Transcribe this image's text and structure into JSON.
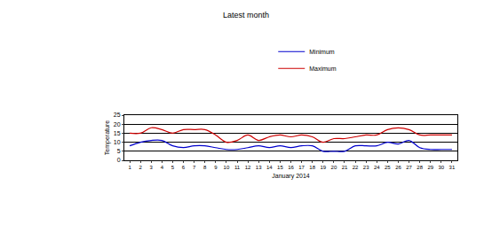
{
  "chart_data": {
    "type": "line",
    "title": "Latest month",
    "x_label": "January 2014",
    "y_label": "Temperature",
    "x": [
      1,
      2,
      3,
      4,
      5,
      6,
      7,
      8,
      9,
      10,
      11,
      12,
      13,
      14,
      15,
      16,
      17,
      18,
      19,
      20,
      21,
      22,
      23,
      24,
      25,
      26,
      27,
      28,
      29,
      30,
      31
    ],
    "series": [
      {
        "name": "Minimum",
        "color": "#0000cc",
        "line_style": "smooth",
        "values": [
          8,
          10,
          11,
          11,
          8,
          7,
          8,
          8,
          7,
          6,
          6,
          7,
          8,
          7,
          8,
          7,
          8,
          8,
          5,
          5,
          5,
          8,
          8,
          8,
          10,
          9,
          11,
          7,
          6,
          6,
          6
        ]
      },
      {
        "name": "Maximum",
        "color": "#cc0000",
        "line_style": "smooth",
        "values": [
          15,
          15,
          18,
          17,
          15,
          17,
          17,
          17,
          14,
          10,
          11,
          14,
          11,
          13,
          14,
          13,
          14,
          13,
          10,
          12,
          12,
          13,
          14,
          14,
          17,
          18,
          17,
          14,
          14,
          14,
          14
        ]
      }
    ],
    "xlim": [
      0.5,
      31.5
    ],
    "xticks": [
      1,
      2,
      3,
      4,
      5,
      6,
      7,
      8,
      9,
      10,
      11,
      12,
      13,
      14,
      15,
      16,
      17,
      18,
      19,
      20,
      21,
      22,
      23,
      24,
      25,
      26,
      27,
      28,
      29,
      30,
      31
    ],
    "ylim": [
      0,
      25
    ],
    "yticks": [
      0,
      5,
      10,
      15,
      20,
      25
    ],
    "grid": true,
    "legend": "top"
  }
}
